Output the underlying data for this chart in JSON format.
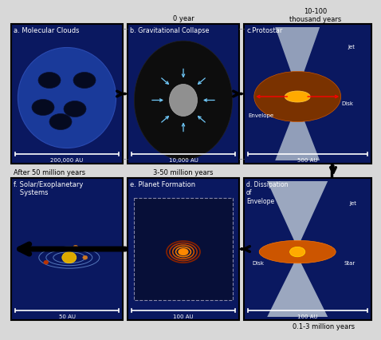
{
  "fig_bg": "#d8d8d8",
  "panel_bg": "#0a1860",
  "panel_edge": "#000000",
  "panels": {
    "a": {
      "label": "a. Molecular Clouds",
      "scale": "200,000 AU"
    },
    "b": {
      "label": "b. Gravitational Collapse",
      "scale": "10,000 AU",
      "time": "0 year"
    },
    "c": {
      "label": "c.Protostar",
      "scale": "500 AU",
      "time": "10-100\nthousand years"
    },
    "d": {
      "label": "d. Dissipation\nof\nEnvelope",
      "scale": "100 AU",
      "time": "0.1-3 million years"
    },
    "e": {
      "label": "e. Planet Formation",
      "scale": "100 AU",
      "time": "3-50 million years"
    },
    "f": {
      "label": "f. Solar/Exoplanetary\nSystems",
      "scale": "50 AU",
      "time": "After 50 million years"
    }
  },
  "nebula_color": "#1a3a9a",
  "nebula_edge": "#2a4ab0",
  "clump_color": "#050a20",
  "collapse_bg": "#0a0a0a",
  "collapse_center": "#909090",
  "arrow_cyan": "#70c8f8",
  "jet_color": "#b8c8d8",
  "envelope_color": "#7a3200",
  "disk_bright": "#ffaa00",
  "ring_colors": [
    "#ff8800",
    "#ee7700",
    "#cc5500",
    "#aa3300",
    "#882200"
  ],
  "sun_color": "#ddaa00",
  "orbit_color": "#5577bb",
  "planet_colors": [
    "#cc7722",
    "#bb3300",
    "#cc7722"
  ]
}
